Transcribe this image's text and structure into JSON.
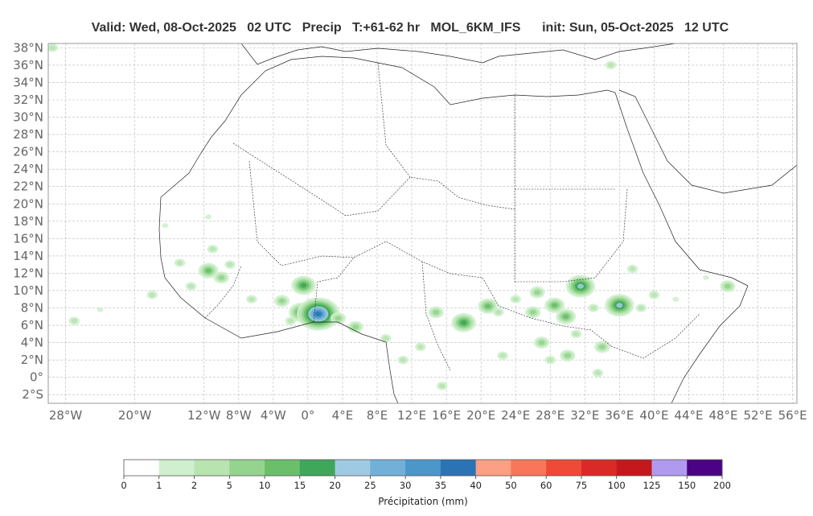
{
  "title": {
    "valid": "Valid: Wed, 08-Oct-2025   02 UTC",
    "field": "Precip",
    "lead": "T:+61-62 hr",
    "model": "MOL_6KM_IFS",
    "init": "init: Sun, 05-Oct-2025   12 UTC"
  },
  "map": {
    "lat_labels": [
      "38°N",
      "36°N",
      "34°N",
      "32°N",
      "30°N",
      "28°N",
      "26°N",
      "24°N",
      "22°N",
      "20°N",
      "18°N",
      "16°N",
      "14°N",
      "12°N",
      "10°N",
      "8°N",
      "6°N",
      "4°N",
      "2°N",
      "0°",
      "2°S"
    ],
    "lat_values": [
      38,
      36,
      34,
      32,
      30,
      28,
      26,
      24,
      22,
      20,
      18,
      16,
      14,
      12,
      10,
      8,
      6,
      4,
      2,
      0,
      -2
    ],
    "lon_labels": [
      "28°W",
      "20°W",
      "12°W",
      "8°W",
      "4°W",
      "0°",
      "4°E",
      "8°E",
      "12°E",
      "16°E",
      "20°E",
      "24°E",
      "28°E",
      "32°E",
      "36°E",
      "40°E",
      "44°E",
      "48°E",
      "52°E",
      "56°E"
    ],
    "lon_values": [
      -28,
      -20,
      -12,
      -8,
      -4,
      0,
      4,
      8,
      12,
      16,
      20,
      24,
      28,
      32,
      36,
      40,
      44,
      48,
      52,
      56
    ],
    "extent": {
      "lon_min": -30,
      "lon_max": 56.5,
      "lat_min": -3,
      "lat_max": 38.5
    },
    "grid": true,
    "precip_cells": [
      {
        "lon": -0.5,
        "lat": 10.6,
        "level": 5
      },
      {
        "lon": -0.8,
        "lat": 7.5,
        "level": 5
      },
      {
        "lon": 1.2,
        "lat": 7.3,
        "level": 9
      },
      {
        "lon": 18.0,
        "lat": 6.3,
        "level": 5
      },
      {
        "lon": 20.8,
        "lat": 8.2,
        "level": 4
      },
      {
        "lon": 28.5,
        "lat": 8.3,
        "level": 4
      },
      {
        "lon": 29.8,
        "lat": 7.0,
        "level": 4
      },
      {
        "lon": 31.5,
        "lat": 10.5,
        "level": 6
      },
      {
        "lon": 36.0,
        "lat": 8.3,
        "level": 6
      },
      {
        "lon": -11.5,
        "lat": 12.3,
        "level": 4
      },
      {
        "lon": 3.5,
        "lat": 6.8,
        "level": 3
      },
      {
        "lon": 5.5,
        "lat": 5.8,
        "level": 3
      },
      {
        "lon": 14.8,
        "lat": 7.5,
        "level": 3
      },
      {
        "lon": 27.0,
        "lat": 4.0,
        "level": 3
      },
      {
        "lon": 30.0,
        "lat": 2.5,
        "level": 3
      },
      {
        "lon": 34.0,
        "lat": 3.5,
        "level": 3
      },
      {
        "lon": 26.5,
        "lat": 9.8,
        "level": 3
      },
      {
        "lon": 48.5,
        "lat": 10.5,
        "level": 3
      },
      {
        "lon": 35.0,
        "lat": 36.0,
        "level": 2
      },
      {
        "lon": -29.5,
        "lat": 38.0,
        "level": 2
      },
      {
        "lon": -27.0,
        "lat": 6.5,
        "level": 2
      },
      {
        "lon": -24.0,
        "lat": 7.8,
        "level": 1
      },
      {
        "lon": -18.0,
        "lat": 9.5,
        "level": 2
      },
      {
        "lon": -13.5,
        "lat": 10.5,
        "level": 2
      },
      {
        "lon": -14.8,
        "lat": 13.2,
        "level": 2
      },
      {
        "lon": -10.0,
        "lat": 11.5,
        "level": 3
      },
      {
        "lon": -6.5,
        "lat": 9.0,
        "level": 2
      },
      {
        "lon": -3.0,
        "lat": 8.8,
        "level": 3
      },
      {
        "lon": 9.0,
        "lat": 4.5,
        "level": 2
      },
      {
        "lon": 11.0,
        "lat": 2.0,
        "level": 2
      },
      {
        "lon": 13.0,
        "lat": 3.5,
        "level": 2
      },
      {
        "lon": 15.5,
        "lat": -1.0,
        "level": 2
      },
      {
        "lon": 22.0,
        "lat": 7.5,
        "level": 2
      },
      {
        "lon": 24.0,
        "lat": 9.0,
        "level": 2
      },
      {
        "lon": 22.5,
        "lat": 2.5,
        "level": 2
      },
      {
        "lon": 31.0,
        "lat": 5.0,
        "level": 2
      },
      {
        "lon": 33.5,
        "lat": 0.5,
        "level": 2
      },
      {
        "lon": 37.5,
        "lat": 12.5,
        "level": 2
      },
      {
        "lon": 40.0,
        "lat": 9.5,
        "level": 2
      },
      {
        "lon": 42.5,
        "lat": 9.0,
        "level": 1
      },
      {
        "lon": 46.0,
        "lat": 11.5,
        "level": 1
      },
      {
        "lon": 38.5,
        "lat": 8.0,
        "level": 2
      },
      {
        "lon": 33.0,
        "lat": 8.0,
        "level": 2
      },
      {
        "lon": -11.0,
        "lat": 14.8,
        "level": 2
      },
      {
        "lon": -9.0,
        "lat": 13.0,
        "level": 2
      },
      {
        "lon": -16.5,
        "lat": 17.5,
        "level": 1
      },
      {
        "lon": -11.5,
        "lat": 18.5,
        "level": 1
      },
      {
        "lon": 26.0,
        "lat": 7.5,
        "level": 3
      },
      {
        "lon": 28.0,
        "lat": 2.0,
        "level": 2
      },
      {
        "lon": -2.0,
        "lat": 6.5,
        "level": 2
      }
    ]
  },
  "colorbar": {
    "label": "Précipitation (mm)",
    "ticks": [
      "0",
      "1",
      "2",
      "5",
      "10",
      "15",
      "20",
      "25",
      "30",
      "35",
      "40",
      "50",
      "60",
      "75",
      "100",
      "125",
      "150",
      "200"
    ],
    "colors": [
      "#ffffff",
      "#cfefcf",
      "#b8e4b0",
      "#95d48f",
      "#6bbf6b",
      "#3ea75a",
      "#9fcae3",
      "#72b0d8",
      "#4b97c9",
      "#2a74b5",
      "#fc9f84",
      "#f9765a",
      "#ef4a37",
      "#da2a27",
      "#c5181d",
      "#b09af0",
      "#4b0286"
    ]
  }
}
